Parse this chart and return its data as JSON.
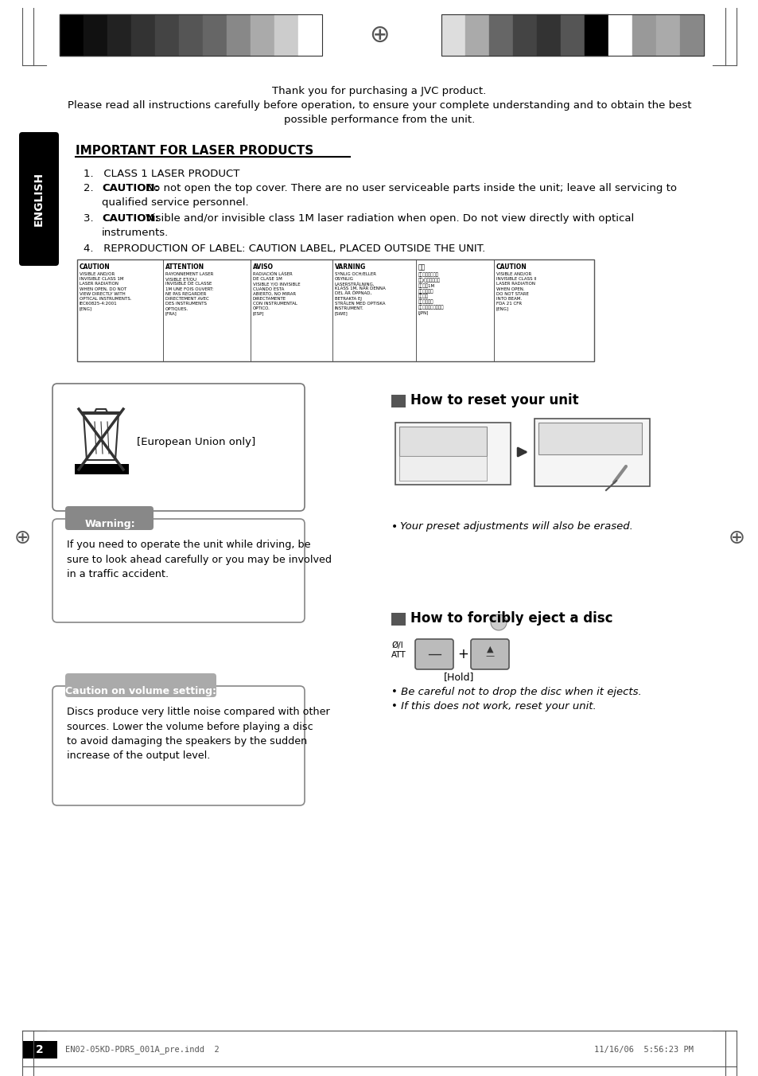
{
  "bg_color": "#ffffff",
  "page_num": "2",
  "footer_left": "EN02-05KD-PDR5_001A_pre.indd  2",
  "footer_right": "11/16/06  5:56:23 PM",
  "intro_line1": "Thank you for purchasing a JVC product.",
  "intro_line2": "Please read all instructions carefully before operation, to ensure your complete understanding and to obtain the best",
  "intro_line3": "possible performance from the unit.",
  "section_title": "IMPORTANT FOR LASER PRODUCTS",
  "item1": "CLASS 1 LASER PRODUCT",
  "item2_bold": "CAUTION:",
  "item2_rest": "Do not open the top cover. There are no user serviceable parts inside the unit; leave all servicing to",
  "item2_rest2": "qualified service personnel.",
  "item3_bold": "CAUTION:",
  "item3_rest": "Visible and/or invisible class 1M laser radiation when open. Do not view directly with optical",
  "item3_rest2": "instruments.",
  "item4": "REPRODUCTION OF LABEL: CAUTION LABEL, PLACED OUTSIDE THE UNIT.",
  "eu_text": "[European Union only]",
  "warning_label": "Warning:",
  "warning_text": "If you need to operate the unit while driving, be\nsure to look ahead carefully or you may be involved\nin a traffic accident.",
  "caution_label": "Caution on volume setting:",
  "caution_text": "Discs produce very little noise compared with other\nsources. Lower the volume before playing a disc\nto avoid damaging the speakers by the sudden\nincrease of the output level.",
  "reset_title": "How to reset your unit",
  "reset_bullet": "Your preset adjustments will also be erased.",
  "eject_title": "How to forcibly eject a disc",
  "eject_label": "[Hold]",
  "eject_bullet1": "Be careful not to drop the disc when it ejects.",
  "eject_bullet2": "If this does not work, reset your unit.",
  "english_label": "ENGLISH",
  "colors_left": [
    "#000000",
    "#111111",
    "#222222",
    "#333333",
    "#444444",
    "#555555",
    "#666666",
    "#888888",
    "#aaaaaa",
    "#cccccc",
    "#ffffff"
  ],
  "colors_right": [
    "#dddddd",
    "#aaaaaa",
    "#666666",
    "#444444",
    "#333333",
    "#555555",
    "#000000",
    "#ffffff",
    "#999999",
    "#aaaaaa",
    "#888888"
  ]
}
